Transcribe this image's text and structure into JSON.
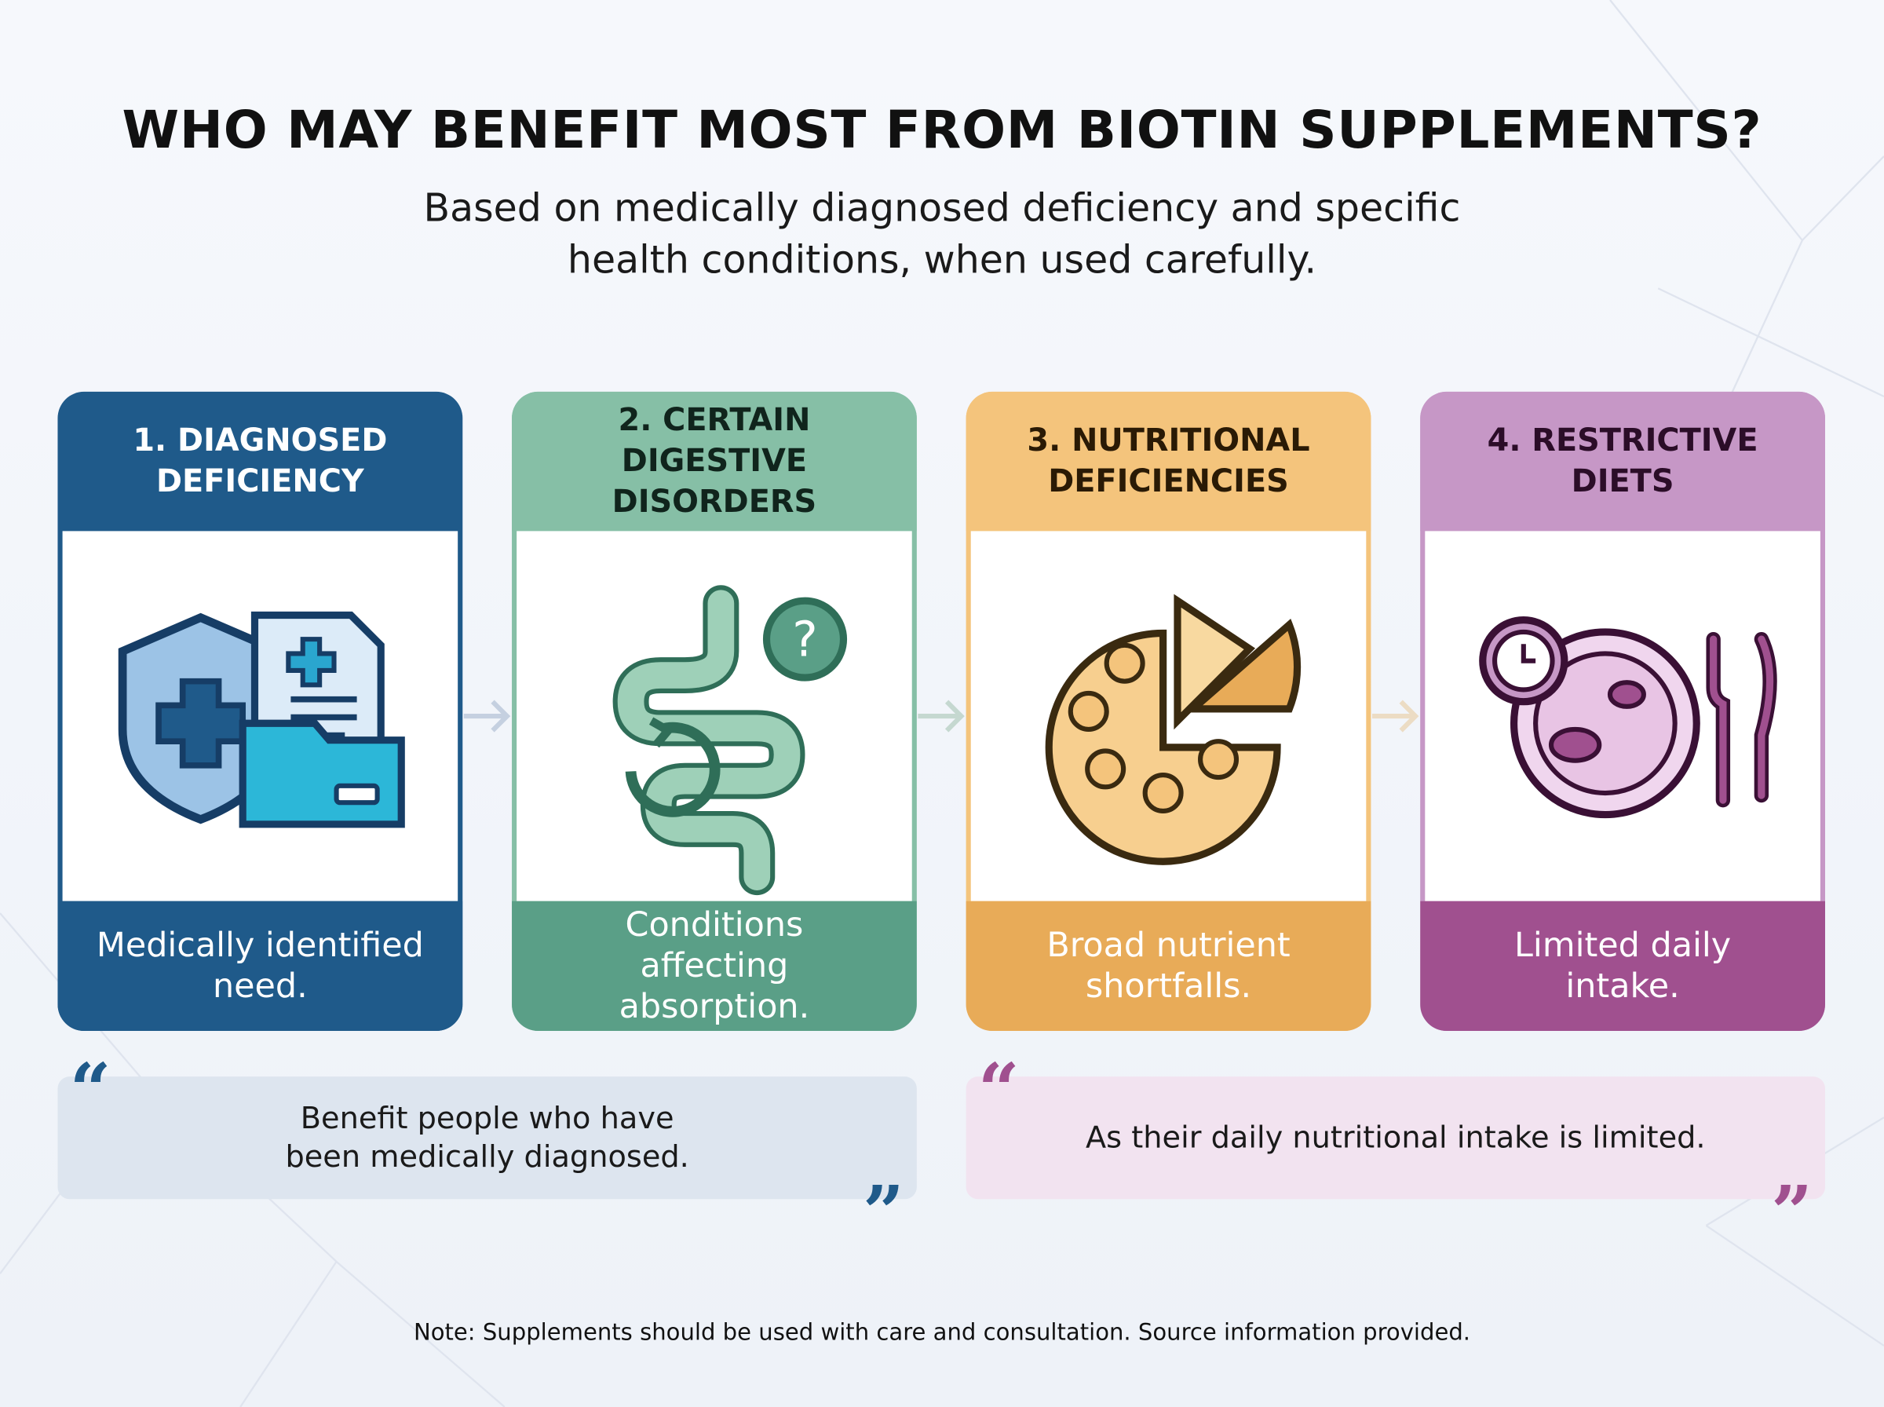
{
  "header": {
    "title": "WHO MAY BENEFIT MOST FROM BIOTIN SUPPLEMENTS?",
    "subtitle": "Based on medically diagnosed deficiency and specific health conditions, when used carefully."
  },
  "cards": [
    {
      "title": "1. DIAGNOSED DEFICIENCY",
      "caption": "Medically identified need."
    },
    {
      "title": "2. CERTAIN DIGESTIVE DISORDERS",
      "caption": "Conditions affecting absorption."
    },
    {
      "title": "3. NUTRITIONAL DEFICIENCIES",
      "caption": "Broad nutrient shortfalls."
    },
    {
      "title": "4. RESTRICTIVE DIETS",
      "caption": "Limited daily intake."
    }
  ],
  "quotes": [
    "Benefit people who have been medically diagnosed.",
    "As their daily nutritional intake is limited."
  ],
  "note": "Note: Supplements should be used with care and consultation. Source information provided."
}
